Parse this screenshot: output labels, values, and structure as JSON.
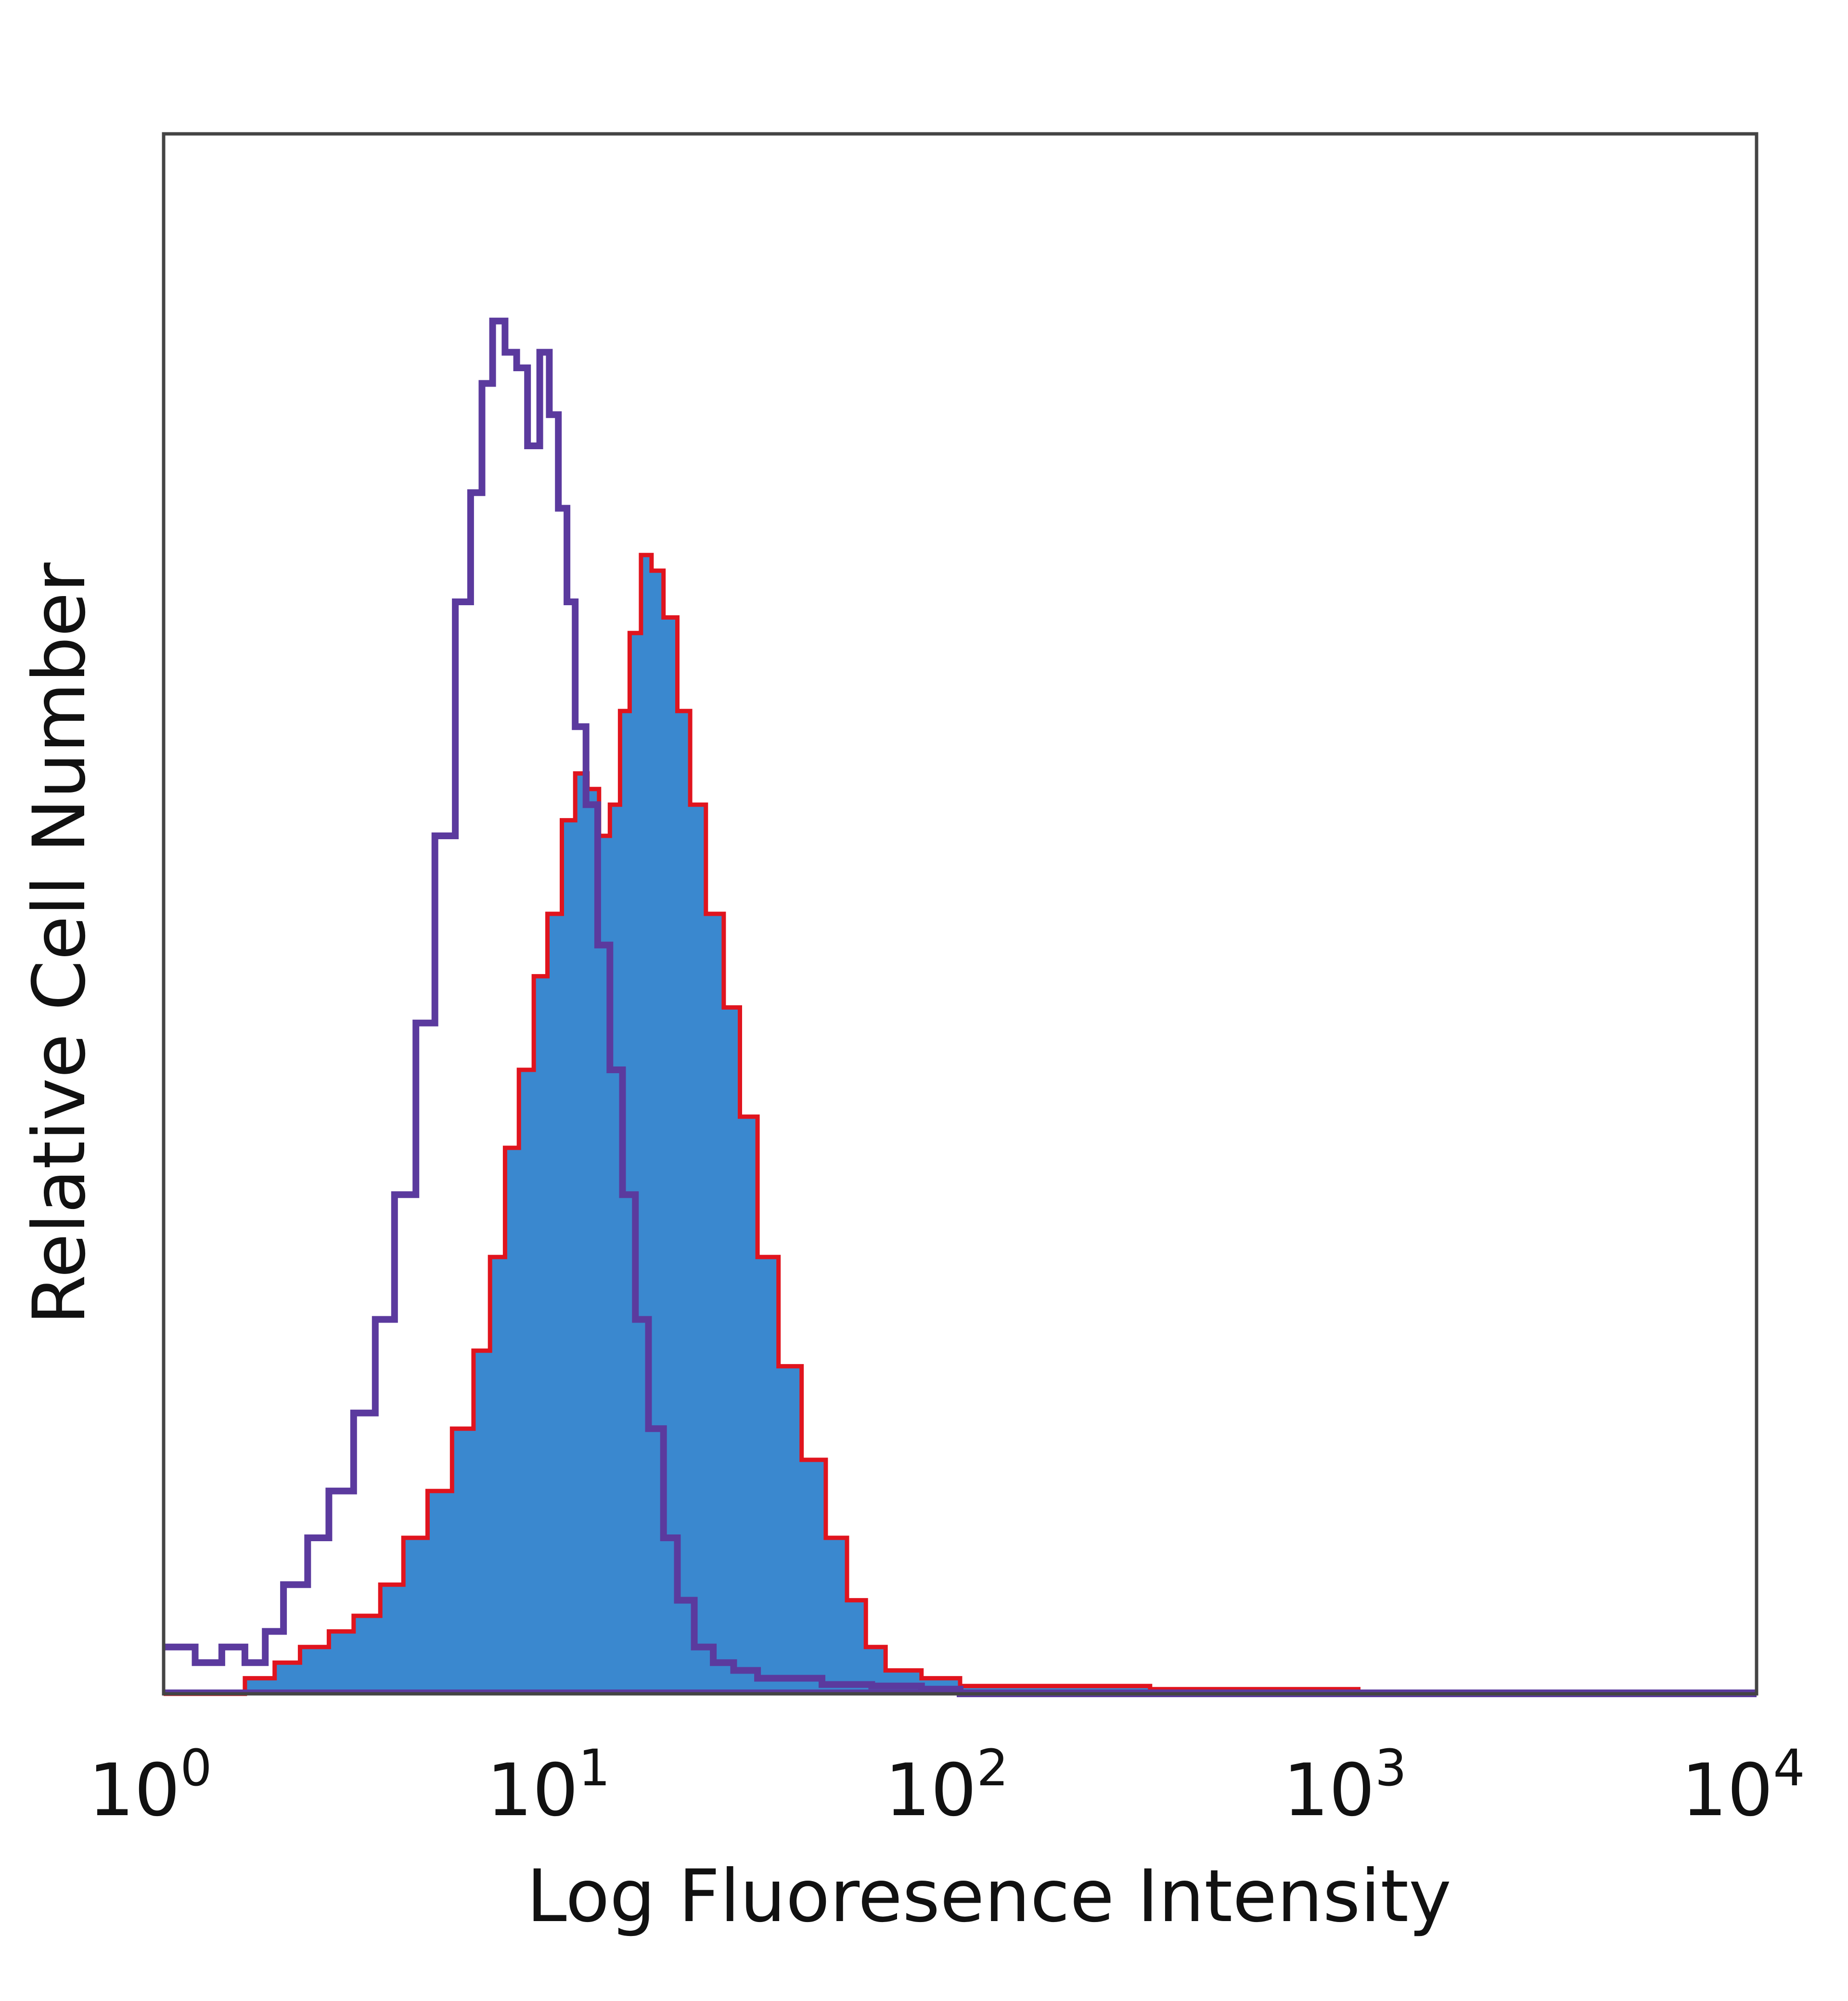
{
  "chart_data": {
    "type": "area",
    "x_scale": "log",
    "xlim": [
      1,
      10000
    ],
    "ylim": [
      0,
      100
    ],
    "xlabel": "Log Fluoresence Intensity",
    "ylabel": "Relative Cell Number",
    "title": "",
    "grid": false,
    "x_ticks": [
      {
        "base": "10",
        "exp": "0",
        "value": 1
      },
      {
        "base": "10",
        "exp": "1",
        "value": 10
      },
      {
        "base": "10",
        "exp": "2",
        "value": 100
      },
      {
        "base": "10",
        "exp": "3",
        "value": 1000
      },
      {
        "base": "10",
        "exp": "4",
        "value": 10000
      }
    ],
    "series": [
      {
        "style": "filled",
        "fill_color": "#3a88cf",
        "edge_color": "#e0141e",
        "x": [
          1,
          1.6,
          1.9,
          2.2,
          2.6,
          3.0,
          3.5,
          4.0,
          4.6,
          5.3,
          6.0,
          6.6,
          7.2,
          7.8,
          8.5,
          9.2,
          10.0,
          10.8,
          11.6,
          12.4,
          13.2,
          14.0,
          14.8,
          15.8,
          16.8,
          18.0,
          19.5,
          21.0,
          23.0,
          25.5,
          28.0,
          31.0,
          35.0,
          40.0,
          46.0,
          52.0,
          58.0,
          65.0,
          80.0,
          100.0,
          300.0,
          1000.0,
          10000.0
        ],
        "y": [
          0,
          1,
          2,
          3,
          4,
          5,
          7,
          10,
          13,
          17,
          22,
          28,
          35,
          40,
          46,
          50,
          56,
          59,
          58,
          55,
          57,
          63,
          68,
          73,
          72,
          69,
          63,
          57,
          50,
          44,
          37,
          28,
          21,
          15,
          10,
          6,
          3,
          1.5,
          1,
          0.5,
          0.3,
          0,
          0
        ]
      },
      {
        "style": "outline",
        "line_color": "#5b3a9e",
        "x": [
          1,
          1.2,
          1.4,
          1.6,
          1.8,
          2.0,
          2.3,
          2.6,
          3.0,
          3.4,
          3.8,
          4.3,
          4.8,
          5.4,
          5.9,
          6.3,
          6.7,
          7.2,
          7.7,
          8.2,
          8.8,
          9.3,
          9.8,
          10.3,
          10.8,
          11.5,
          12.3,
          13.2,
          14.2,
          15.3,
          16.5,
          18.0,
          19.5,
          21.5,
          24.0,
          27.0,
          31.0,
          36.0,
          45.0,
          60.0,
          80.0,
          100.0,
          1000.0,
          10000.0
        ],
        "y": [
          3,
          2,
          3,
          2,
          4,
          7,
          10,
          13,
          18,
          24,
          32,
          43,
          55,
          70,
          77,
          84,
          88,
          86,
          85,
          80,
          86,
          82,
          76,
          70,
          62,
          57,
          48,
          40,
          32,
          24,
          17,
          10,
          6,
          3,
          2,
          1.5,
          1,
          1,
          0.6,
          0.5,
          0.3,
          0,
          0,
          0
        ]
      }
    ]
  }
}
